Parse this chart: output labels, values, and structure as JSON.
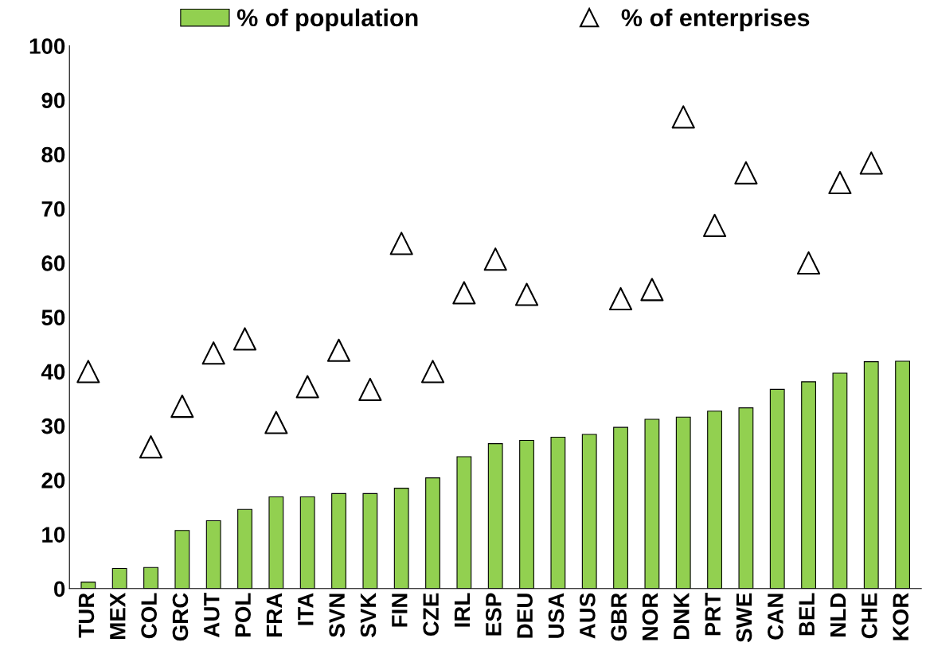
{
  "chart_data": {
    "type": "bar",
    "categories": [
      "TUR",
      "MEX",
      "COL",
      "GRC",
      "AUT",
      "POL",
      "FRA",
      "ITA",
      "SVN",
      "SVK",
      "FIN",
      "CZE",
      "IRL",
      "ESP",
      "DEU",
      "USA",
      "AUS",
      "GBR",
      "NOR",
      "DNK",
      "PRT",
      "SWE",
      "CAN",
      "BEL",
      "NLD",
      "CHE",
      "KOR"
    ],
    "series": [
      {
        "name": "% of population",
        "color": "#92d050",
        "values": [
          1.2,
          3.7,
          3.9,
          10.7,
          12.5,
          14.6,
          16.9,
          16.9,
          17.5,
          17.5,
          18.5,
          20.4,
          24.3,
          26.7,
          27.3,
          27.9,
          28.4,
          29.7,
          31.2,
          31.6,
          32.7,
          33.3,
          36.7,
          38.1,
          39.7,
          41.8,
          41.9
        ]
      },
      {
        "name": "% of enterprises",
        "type": "scatter",
        "color": "#000000",
        "marker": "triangle",
        "values": [
          40.0,
          null,
          26.1,
          33.6,
          43.4,
          46.0,
          30.6,
          37.2,
          43.9,
          36.7,
          63.6,
          40.0,
          54.5,
          60.7,
          54.2,
          null,
          null,
          53.4,
          55.1,
          86.9,
          66.9,
          76.6,
          null,
          60.0,
          74.8,
          78.4,
          null
        ]
      }
    ],
    "ylim": [
      0,
      100
    ],
    "yticks": [
      0,
      10,
      20,
      30,
      40,
      50,
      60,
      70,
      80,
      90,
      100
    ],
    "grid": false,
    "legend": "top"
  }
}
